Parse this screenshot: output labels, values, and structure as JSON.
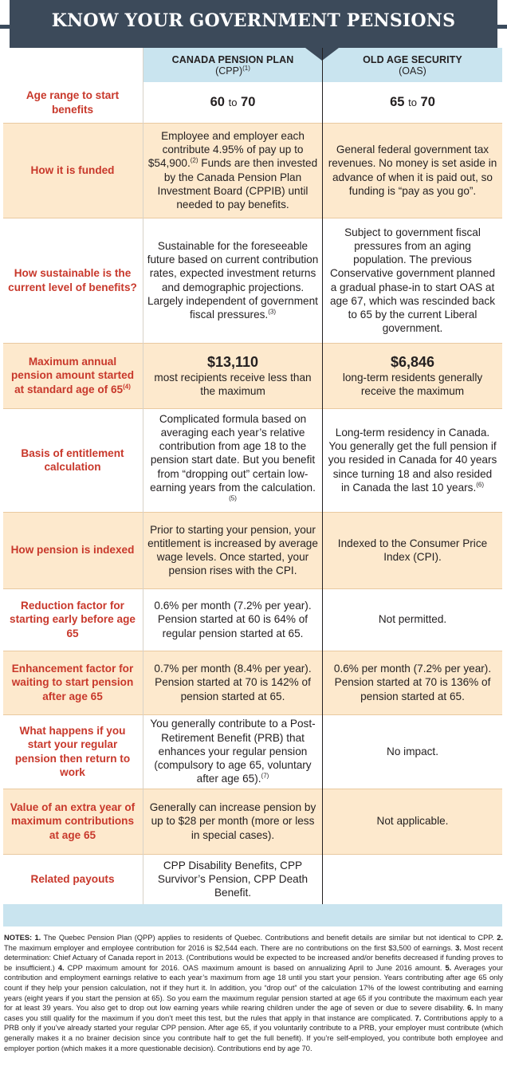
{
  "title": "KNOW YOUR GOVERNMENT PENSIONS",
  "columns": {
    "cpp": {
      "name": "CANADA PENSION PLAN",
      "abbr": "(CPP)",
      "note": "(1)"
    },
    "oas": {
      "name": "OLD AGE SECURITY",
      "abbr": "(OAS)"
    }
  },
  "rows": [
    {
      "label": "Age range to start benefits",
      "cpp_from": "60",
      "cpp_to": "to",
      "cpp_end": "70",
      "oas_from": "65",
      "oas_to": "to",
      "oas_end": "70"
    },
    {
      "label": "How it is funded",
      "cpp_a": "Employee and employer each contribute 4.95% of pay up to $54,900.",
      "cpp_a_note": "(2)",
      "cpp_b": " Funds are then invested by the Canada Pension Plan Investment Board (CPPIB) until needed to pay benefits.",
      "oas": "General federal government tax revenues. No money is set aside in advance of when it is paid out, so funding is “pay as you go”."
    },
    {
      "label": "How sustainable is the current level of benefits?",
      "cpp": "Sustainable for the foreseeable future based on current contribution rates, expected investment returns and demographic projections. Largely independent of government fiscal pressures.",
      "cpp_note": "(3)",
      "oas": "Subject to government fiscal pressures from an aging population. The previous Conservative government planned a gradual phase-in to start OAS at age 67, which was rescinded back to 65 by the current Liberal government."
    },
    {
      "label": "Maximum annual pension amount started at standard age of 65",
      "label_note": "(4)",
      "cpp_amount": "$13,110",
      "cpp": "most recipients receive less than the maximum",
      "oas_amount": "$6,846",
      "oas": "long-term residents generally receive the maximum"
    },
    {
      "label": "Basis of entitlement calculation",
      "cpp": "Complicated formula based on averaging each year’s relative contribution from age 18 to the pension start date. But you benefit from “dropping out” certain low-earning years from the calculation.",
      "cpp_note": "(5)",
      "oas": "Long-term residency in Canada. You generally get the full pension if you resided in Canada for 40 years since turning 18 and also resided in Canada the last 10 years.",
      "oas_note": "(6)"
    },
    {
      "label": "How pension is indexed",
      "cpp": "Prior to starting your pension, your entitlement is increased by average wage levels. Once started, your pension rises with the CPI.",
      "oas": "Indexed to the Consumer Price Index (CPI)."
    },
    {
      "label": "Reduction factor for starting early before age 65",
      "cpp": "0.6% per month (7.2% per year). Pension started at 60 is 64% of regular pension started at 65.",
      "oas": "Not permitted."
    },
    {
      "label": "Enhancement factor for waiting to start pension after age 65",
      "cpp": "0.7% per month (8.4% per year). Pension started at 70 is 142% of pension started at 65.",
      "oas": "0.6% per month (7.2% per year). Pension started at 70 is 136% of pension started at 65."
    },
    {
      "label": "What happens if you start your regular pension then return to work",
      "cpp": "You generally contribute to a Post-Retirement Benefit (PRB) that enhances your regular pension (compulsory to age 65, voluntary after age 65).",
      "cpp_note": "(7)",
      "oas": "No impact."
    },
    {
      "label": "Value of an extra year of maximum contributions at age 65",
      "cpp": "Generally can increase pension by up to $28 per month (more or less in special cases).",
      "oas": "Not applicable."
    },
    {
      "label": "Related payouts",
      "cpp": "CPP Disability Benefits, CPP Survivor’s Pension, CPP Death Benefit.",
      "oas": ""
    }
  ],
  "notes": [
    {
      "n": "NOTES: 1.",
      "t": " The Quebec Pension Plan (QPP) applies to residents of Quebec. Contributions and benefit details are similar but not identical to CPP. "
    },
    {
      "n": "2.",
      "t": " The maximum employer and employee contribution for 2016 is $2,544 each. There are no contributions on the first $3,500 of earnings. "
    },
    {
      "n": "3.",
      "t": " Most recent determination: Chief Actuary of Canada report in 2013. (Contributions would be expected to be increased and/or benefits decreased if funding proves to be insufficient.) "
    },
    {
      "n": "4.",
      "t": " CPP maximum amount for 2016. OAS maximum amount is based on annualizing April to June 2016 amount. "
    },
    {
      "n": "5.",
      "t": " Averages your contribution and employment earnings relative to each year’s maximum from age 18 until you start your pension. Years contributing after age 65 only count if they help your pension calculation, not if they hurt it. In addition, you “drop out” of the calculation 17% of the lowest contributing and earning years (eight years if you start the pension at 65). So you earn the maximum regular pension started at age 65 if you contribute the maximum each year for at least 39 years. You also get to drop out low earning years while rearing children under the age of seven or due to severe disability. "
    },
    {
      "n": "6.",
      "t": " In many cases you still qualify for the maximum if you don’t meet this test, but the rules that apply in that instance are complicated. "
    },
    {
      "n": "7.",
      "t": " Contributions apply to a PRB only if you’ve already started your regular CPP pension. After age 65, if you voluntarily contribute to a PRB, your employer must contribute (which generally makes it a no brainer decision since you contribute half to get the full benefit). If you’re self-employed, you contribute both employee and employer portion (which makes it a more questionable decision). Contributions end by age 70."
    }
  ]
}
